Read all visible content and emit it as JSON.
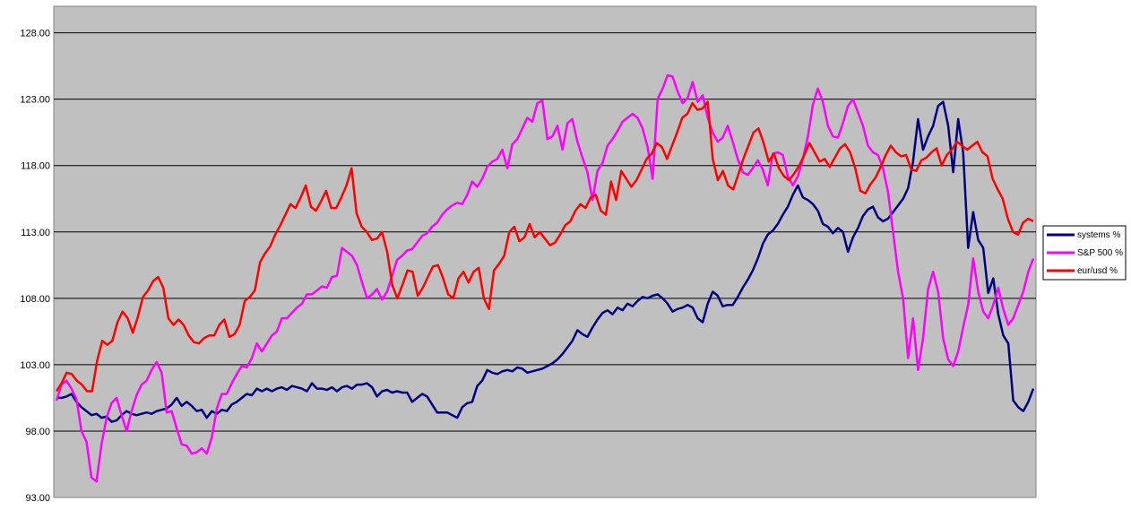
{
  "chart_data": {
    "type": "line",
    "ylim": [
      93,
      130
    ],
    "yticks": [
      "93.00",
      "98.00",
      "103.00",
      "108.00",
      "113.00",
      "118.00",
      "123.00",
      "128.00"
    ],
    "grid": true,
    "legend_position": "right",
    "plot_background": "#c0c0c0",
    "x_points": 200,
    "series": [
      {
        "name": "systems %",
        "color": "#000080",
        "values": [
          100.5,
          100.5,
          100.6,
          100.8,
          100.2,
          99.8,
          99.5,
          99.2,
          99.3,
          99.0,
          99.1,
          98.7,
          98.8,
          99.2,
          99.5,
          99.3,
          99.2,
          99.3,
          99.4,
          99.3,
          99.5,
          99.6,
          99.7,
          100.0,
          100.5,
          99.9,
          100.2,
          99.9,
          99.5,
          99.6,
          99.0,
          99.5,
          99.3,
          99.6,
          99.5,
          100.0,
          100.2,
          100.5,
          100.8,
          100.7,
          101.2,
          101.0,
          101.2,
          101.0,
          101.2,
          101.3,
          101.1,
          101.4,
          101.3,
          101.2,
          101.0,
          101.6,
          101.2,
          101.2,
          101.1,
          101.3,
          101.0,
          101.3,
          101.4,
          101.2,
          101.5,
          101.5,
          101.6,
          101.3,
          100.6,
          101.0,
          101.1,
          100.9,
          101.0,
          100.9,
          100.9,
          100.2,
          100.5,
          100.8,
          100.6,
          100.0,
          99.4,
          99.4,
          99.4,
          99.2,
          99.0,
          99.8,
          100.1,
          100.2,
          101.4,
          101.8,
          102.6,
          102.4,
          102.3,
          102.5,
          102.6,
          102.5,
          102.8,
          102.7,
          102.4,
          102.5,
          102.6,
          102.7,
          102.9,
          103.1,
          103.4,
          103.8,
          104.3,
          104.8,
          105.6,
          105.3,
          105.1,
          105.8,
          106.4,
          106.9,
          107.1,
          106.8,
          107.3,
          107.1,
          107.6,
          107.4,
          107.8,
          108.1,
          108.0,
          108.2,
          108.3,
          108.0,
          107.6,
          107.0,
          107.2,
          107.3,
          107.5,
          107.3,
          106.5,
          106.2,
          107.6,
          108.5,
          108.2,
          107.4,
          107.5,
          107.5,
          108.1,
          108.8,
          109.4,
          110.1,
          111.0,
          112.1,
          112.8,
          113.1,
          113.6,
          114.3,
          114.9,
          115.8,
          116.5,
          115.6,
          115.4,
          115.1,
          114.6,
          113.6,
          113.4,
          112.9,
          113.3,
          113.0,
          111.5,
          112.6,
          113.3,
          114.2,
          114.7,
          114.9,
          114.1,
          113.8,
          114.0,
          114.5,
          115.0,
          115.5,
          116.3,
          118.3,
          121.5,
          119.2,
          120.2,
          121.0,
          122.5,
          122.8,
          121.0,
          117.5,
          121.5,
          119.0,
          111.8,
          114.5,
          112.4,
          111.8,
          108.4,
          109.5,
          106.8,
          105.2,
          104.6,
          100.3,
          99.8,
          99.5,
          100.2,
          101.2
        ]
      },
      {
        "name": "S&P 500 %",
        "color": "#ff00ff",
        "values": [
          100.3,
          101.5,
          101.8,
          101.2,
          100.4,
          98.0,
          97.2,
          94.5,
          94.2,
          97.0,
          99.0,
          100.1,
          100.5,
          99.2,
          98.0,
          99.5,
          100.7,
          101.5,
          101.8,
          102.6,
          103.2,
          102.4,
          99.4,
          99.5,
          98.2,
          97.0,
          96.9,
          96.3,
          96.4,
          96.7,
          96.3,
          97.5,
          99.7,
          100.8,
          100.8,
          101.6,
          102.3,
          102.9,
          102.8,
          103.5,
          104.6,
          104.0,
          104.6,
          105.2,
          105.5,
          106.5,
          106.5,
          106.9,
          107.3,
          107.6,
          108.3,
          108.3,
          108.6,
          108.9,
          108.8,
          109.6,
          109.7,
          111.8,
          111.5,
          111.2,
          110.5,
          109.2,
          108.0,
          108.3,
          108.7,
          107.9,
          108.5,
          109.7,
          110.9,
          111.2,
          111.6,
          111.7,
          112.2,
          112.7,
          112.9,
          113.4,
          113.7,
          114.3,
          114.7,
          115.0,
          115.2,
          115.1,
          115.8,
          116.8,
          116.4,
          117.0,
          117.9,
          118.3,
          118.5,
          119.2,
          117.8,
          119.6,
          120.0,
          120.8,
          121.6,
          121.3,
          122.7,
          122.9,
          120.0,
          120.2,
          121.0,
          119.2,
          121.2,
          121.5,
          119.8,
          118.6,
          117.5,
          115.4,
          117.6,
          118.2,
          119.5,
          120.0,
          120.6,
          121.3,
          121.6,
          121.9,
          121.6,
          120.8,
          119.4,
          117.0,
          123.0,
          123.8,
          124.8,
          124.7,
          123.6,
          122.7,
          123.1,
          124.3,
          122.8,
          123.3,
          121.6,
          120.5,
          119.8,
          120.1,
          121.0,
          119.8,
          118.5,
          117.5,
          117.3,
          117.8,
          118.4,
          117.7,
          116.5,
          118.9,
          119.0,
          118.8,
          117.2,
          116.5,
          117.2,
          118.5,
          120.2,
          122.6,
          123.8,
          122.8,
          121.0,
          120.2,
          120.1,
          121.2,
          122.5,
          123.0,
          122.0,
          121.0,
          119.5,
          119.0,
          118.8,
          117.8,
          116.0,
          113.0,
          110.0,
          108.0,
          103.5,
          106.5,
          102.6,
          105.0,
          108.7,
          110.0,
          108.5,
          105.0,
          103.4,
          102.9,
          104.0,
          105.8,
          107.5,
          111.0,
          108.5,
          107.0,
          106.5,
          107.5,
          108.8,
          107.2,
          106.0,
          106.5,
          107.5,
          108.5,
          110.0,
          111.0
        ]
      },
      {
        "name": "eur/usd %",
        "color": "#ff0000",
        "values": [
          101.0,
          101.6,
          102.4,
          102.3,
          101.8,
          101.5,
          101.0,
          101.0,
          103.3,
          104.8,
          104.5,
          104.8,
          106.2,
          107.0,
          106.5,
          105.4,
          106.6,
          108.1,
          108.6,
          109.3,
          109.6,
          108.8,
          106.5,
          106.0,
          106.4,
          106.0,
          105.2,
          104.7,
          104.6,
          105.0,
          105.2,
          105.2,
          106.0,
          106.4,
          105.1,
          105.3,
          106.0,
          107.8,
          108.1,
          108.6,
          110.7,
          111.4,
          111.9,
          112.8,
          113.5,
          114.3,
          115.1,
          114.8,
          115.6,
          116.5,
          114.9,
          114.6,
          115.3,
          116.1,
          114.8,
          114.8,
          115.6,
          116.5,
          117.8,
          114.4,
          113.4,
          113.0,
          112.4,
          112.5,
          113.0,
          111.5,
          109.0,
          108.0,
          109.0,
          110.1,
          110.0,
          108.2,
          108.8,
          109.6,
          110.4,
          110.5,
          109.5,
          108.3,
          108.0,
          109.5,
          110.0,
          109.2,
          110.0,
          110.3,
          108.0,
          107.2,
          110.1,
          110.6,
          111.2,
          113.0,
          113.4,
          112.3,
          112.6,
          113.6,
          112.6,
          113.0,
          112.5,
          112.0,
          112.2,
          112.8,
          113.5,
          113.8,
          114.6,
          115.1,
          114.8,
          115.6,
          115.8,
          114.6,
          114.3,
          116.8,
          115.4,
          117.6,
          117.0,
          116.4,
          116.9,
          117.7,
          118.5,
          118.9,
          119.7,
          119.4,
          118.5,
          119.5,
          120.5,
          121.6,
          121.9,
          122.7,
          122.2,
          122.3,
          122.8,
          118.5,
          116.9,
          117.6,
          116.5,
          116.2,
          117.3,
          118.5,
          119.5,
          120.5,
          120.8,
          119.7,
          118.3,
          118.9,
          117.8,
          117.2,
          116.9,
          117.4,
          118.0,
          118.8,
          119.7,
          119.0,
          118.3,
          118.5,
          117.9,
          118.6,
          119.3,
          119.6,
          119.0,
          117.8,
          116.1,
          115.9,
          116.6,
          117.1,
          117.9,
          118.8,
          119.5,
          119.0,
          118.7,
          118.8,
          117.7,
          117.6,
          118.4,
          118.6,
          119.0,
          119.3,
          118.0,
          118.8,
          119.2,
          119.8,
          119.5,
          119.2,
          119.5,
          119.8,
          119.0,
          118.7,
          117.0,
          116.2,
          115.5,
          114.0,
          113.0,
          112.8,
          113.7,
          114.0,
          113.8
        ]
      }
    ]
  }
}
